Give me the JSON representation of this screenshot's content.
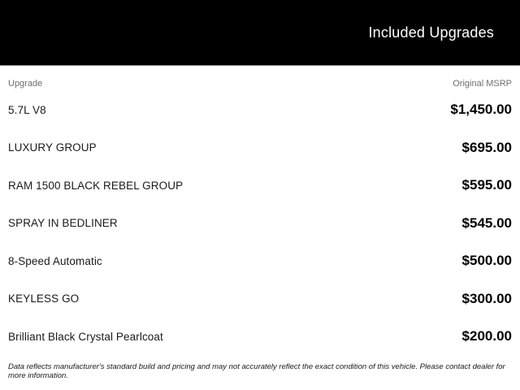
{
  "header": {
    "title": "Included Upgrades",
    "bg_color": "#000000",
    "text_color": "#ffffff"
  },
  "table": {
    "columns": {
      "upgrade": "Upgrade",
      "msrp": "Original MSRP"
    },
    "column_header_color": "#6e6e6e",
    "rows": [
      {
        "upgrade": "5.7L V8",
        "msrp": "$1,450.00"
      },
      {
        "upgrade": "LUXURY GROUP",
        "msrp": "$695.00"
      },
      {
        "upgrade": "RAM 1500 BLACK REBEL GROUP",
        "msrp": "$595.00"
      },
      {
        "upgrade": "SPRAY IN BEDLINER",
        "msrp": "$545.00"
      },
      {
        "upgrade": "8-Speed Automatic",
        "msrp": "$500.00"
      },
      {
        "upgrade": "KEYLESS GO",
        "msrp": "$300.00"
      },
      {
        "upgrade": "Brilliant Black Crystal Pearlcoat",
        "msrp": "$200.00"
      }
    ]
  },
  "footer": {
    "disclaimer": "Data reflects manufacturer's standard build and pricing and may not accurately reflect the exact condition of this vehicle. Please contact dealer for more information."
  }
}
